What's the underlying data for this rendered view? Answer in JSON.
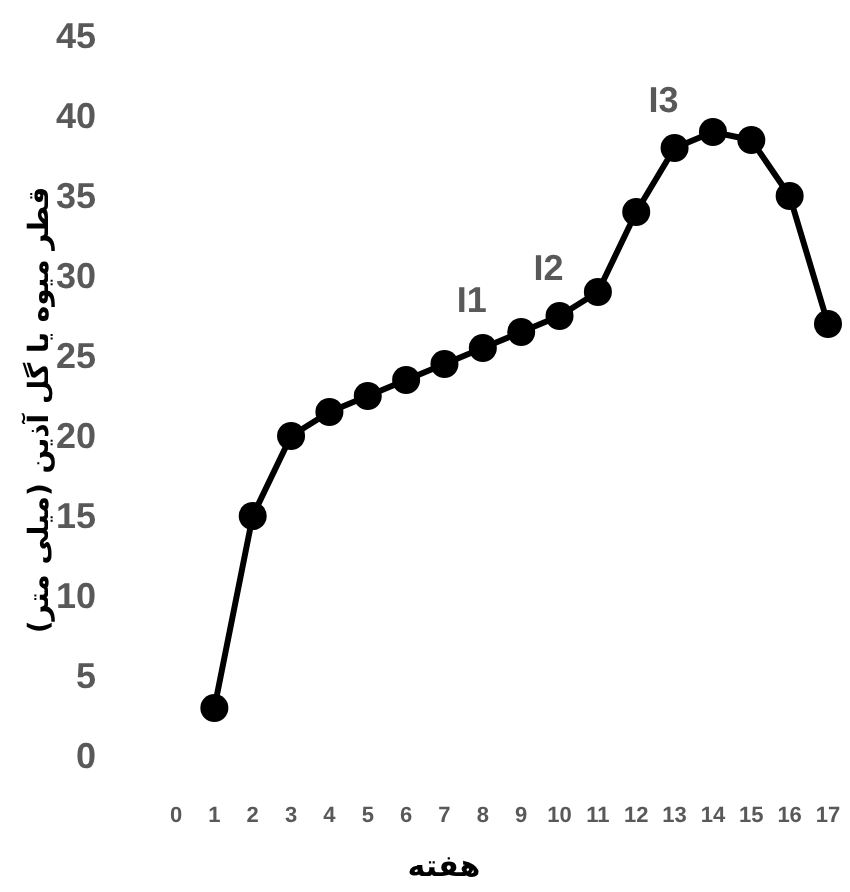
{
  "chart_data": {
    "type": "line",
    "xlabel": "هفته",
    "ylabel": "قطر میوه یا گل آذین (میلی متر)",
    "x": [
      1,
      2,
      3,
      4,
      5,
      6,
      7,
      8,
      9,
      10,
      11,
      12,
      13,
      14,
      15,
      16,
      17
    ],
    "series": [
      {
        "color": "#000000",
        "values": [
          3,
          15,
          20,
          21.5,
          22.5,
          23.5,
          24.5,
          25.5,
          26.5,
          27.5,
          29,
          34,
          38,
          39,
          38.5,
          35,
          27
        ]
      }
    ],
    "xlim": [
      0,
      17
    ],
    "xticks": [
      0,
      1,
      2,
      3,
      4,
      5,
      6,
      7,
      8,
      9,
      10,
      11,
      12,
      13,
      14,
      15,
      16,
      17
    ],
    "ylim": [
      0,
      45
    ],
    "yticks": [
      0,
      5,
      10,
      15,
      20,
      25,
      30,
      35,
      40,
      45
    ],
    "annotations": [
      {
        "text": "I1",
        "x": 8,
        "y": 25.5
      },
      {
        "text": "I2",
        "x": 10,
        "y": 27.5
      },
      {
        "text": "I3",
        "x": 13,
        "y": 38
      }
    ],
    "grid": false,
    "marker": "circle",
    "line_style": "solid"
  }
}
